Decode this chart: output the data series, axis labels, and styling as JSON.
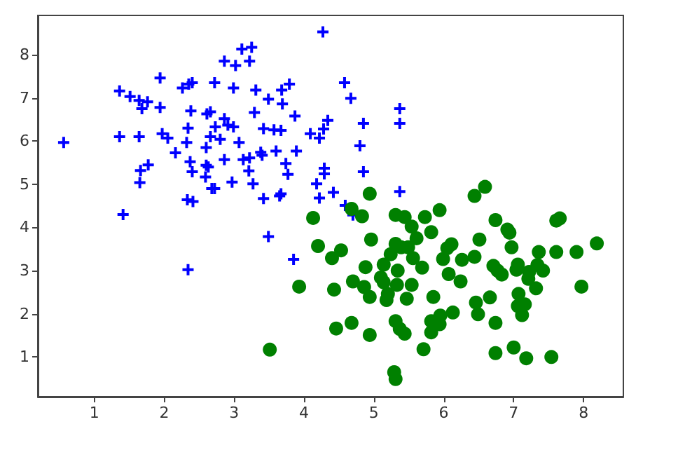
{
  "chart_data": {
    "type": "scatter",
    "xlim": [
      0.19,
      8.57
    ],
    "ylim": [
      0.08,
      8.91
    ],
    "xticks": [
      1,
      2,
      3,
      4,
      5,
      6,
      7,
      8
    ],
    "yticks": [
      1,
      2,
      3,
      4,
      5,
      6,
      7,
      8
    ],
    "grid": false,
    "series": [
      {
        "color": "#0000ff",
        "marker": "cross",
        "x": [
          0.56,
          1.36,
          1.51,
          1.64,
          1.76,
          1.68,
          1.94,
          1.94,
          1.36,
          1.64,
          1.97,
          2.05,
          2.16,
          1.66,
          1.77,
          1.65,
          1.41,
          2.26,
          2.35,
          2.4,
          2.38,
          2.34,
          2.32,
          2.37,
          2.4,
          2.33,
          2.41,
          2.34,
          2.61,
          2.66,
          2.72,
          2.73,
          2.66,
          2.6,
          2.6,
          2.63,
          2.59,
          2.68,
          2.72,
          2.86,
          3.02,
          2.99,
          3.11,
          3.25,
          3.22,
          2.86,
          2.91,
          2.99,
          2.8,
          3.07,
          2.86,
          3.13,
          3.22,
          3.21,
          2.97,
          3.27,
          3.31,
          3.49,
          3.29,
          3.42,
          3.57,
          3.67,
          3.38,
          3.4,
          3.6,
          3.74,
          3.77,
          3.42,
          3.65,
          3.67,
          3.49,
          3.68,
          3.79,
          3.69,
          3.87,
          3.89,
          3.85,
          4.09,
          4.22,
          4.28,
          4.34,
          4.27,
          4.29,
          4.29,
          4.18,
          4.22,
          4.42,
          4.58,
          4.67,
          4.85,
          4.8,
          4.85,
          4.59,
          4.7,
          5.37,
          5.37,
          5.37
        ],
        "values": [
          5.97,
          7.16,
          7.03,
          6.94,
          6.91,
          6.75,
          7.46,
          6.78,
          6.1,
          6.1,
          6.17,
          6.07,
          5.73,
          5.32,
          5.45,
          5.04,
          4.3,
          7.23,
          7.32,
          7.35,
          6.7,
          6.3,
          5.97,
          5.52,
          5.29,
          4.64,
          4.6,
          3.02,
          6.63,
          6.68,
          7.35,
          6.33,
          6.1,
          5.85,
          5.44,
          5.4,
          5.17,
          4.9,
          4.9,
          7.85,
          7.75,
          7.23,
          8.13,
          8.17,
          7.85,
          6.52,
          6.37,
          6.33,
          6.04,
          5.97,
          5.57,
          5.57,
          5.61,
          5.31,
          5.05,
          5.01,
          7.18,
          6.97,
          6.66,
          6.29,
          6.26,
          6.25,
          5.74,
          5.67,
          5.77,
          5.48,
          5.23,
          4.67,
          4.73,
          4.78,
          3.79,
          7.18,
          7.32,
          6.86,
          6.58,
          5.77,
          3.26,
          6.17,
          6.07,
          6.28,
          6.48,
          8.53,
          5.37,
          5.24,
          5.01,
          4.68,
          4.81,
          7.35,
          6.99,
          6.41,
          5.89,
          5.29,
          4.51,
          4.29,
          6.75,
          6.41,
          4.83
        ]
      },
      {
        "color": "#008000",
        "marker": "circle",
        "x": [
          3.51,
          3.93,
          4.13,
          4.2,
          4.4,
          4.53,
          4.43,
          4.46,
          4.68,
          4.83,
          4.94,
          4.96,
          4.7,
          4.88,
          4.86,
          4.94,
          4.68,
          4.94,
          5.14,
          5.1,
          5.14,
          5.2,
          5.18,
          5.24,
          5.31,
          5.34,
          5.33,
          5.39,
          5.31,
          5.44,
          5.54,
          5.61,
          5.49,
          5.56,
          5.69,
          5.54,
          5.47,
          5.31,
          5.37,
          5.44,
          5.29,
          5.31,
          5.73,
          5.82,
          5.94,
          5.71,
          5.85,
          5.82,
          5.82,
          5.95,
          5.94,
          6.13,
          5.99,
          6.05,
          6.11,
          6.07,
          6.24,
          6.26,
          6.44,
          6.51,
          6.44,
          6.59,
          6.74,
          6.46,
          6.49,
          6.66,
          6.74,
          6.74,
          6.71,
          6.77,
          6.83,
          6.91,
          6.94,
          6.97,
          7.06,
          7.04,
          7.07,
          7.06,
          7.16,
          7.12,
          7.0,
          7.18,
          7.22,
          7.21,
          7.32,
          7.36,
          7.34,
          7.42,
          7.54,
          7.61,
          7.66,
          7.61,
          7.9,
          7.97,
          8.19
        ],
        "values": [
          1.17,
          2.63,
          4.22,
          3.57,
          3.29,
          3.47,
          2.56,
          1.66,
          4.43,
          4.26,
          4.78,
          3.72,
          2.75,
          3.08,
          2.62,
          2.39,
          1.79,
          1.51,
          3.14,
          2.84,
          2.73,
          2.46,
          2.32,
          3.38,
          3.62,
          3.0,
          2.67,
          3.54,
          4.29,
          4.24,
          4.02,
          3.75,
          3.54,
          3.29,
          3.07,
          2.67,
          2.35,
          1.83,
          1.65,
          1.54,
          0.65,
          0.49,
          4.24,
          3.89,
          4.4,
          1.18,
          2.39,
          1.83,
          1.57,
          1.96,
          1.76,
          2.03,
          3.27,
          3.52,
          3.61,
          2.92,
          2.75,
          3.25,
          3.32,
          3.72,
          4.73,
          4.94,
          4.17,
          2.26,
          1.99,
          2.38,
          1.79,
          1.09,
          3.11,
          3.0,
          2.91,
          3.95,
          3.88,
          3.54,
          3.14,
          3.02,
          2.46,
          2.18,
          2.22,
          1.97,
          1.22,
          0.97,
          2.97,
          2.81,
          2.59,
          3.43,
          3.13,
          3.0,
          1.0,
          4.16,
          4.21,
          3.43,
          3.43,
          2.63,
          3.63
        ]
      }
    ]
  }
}
